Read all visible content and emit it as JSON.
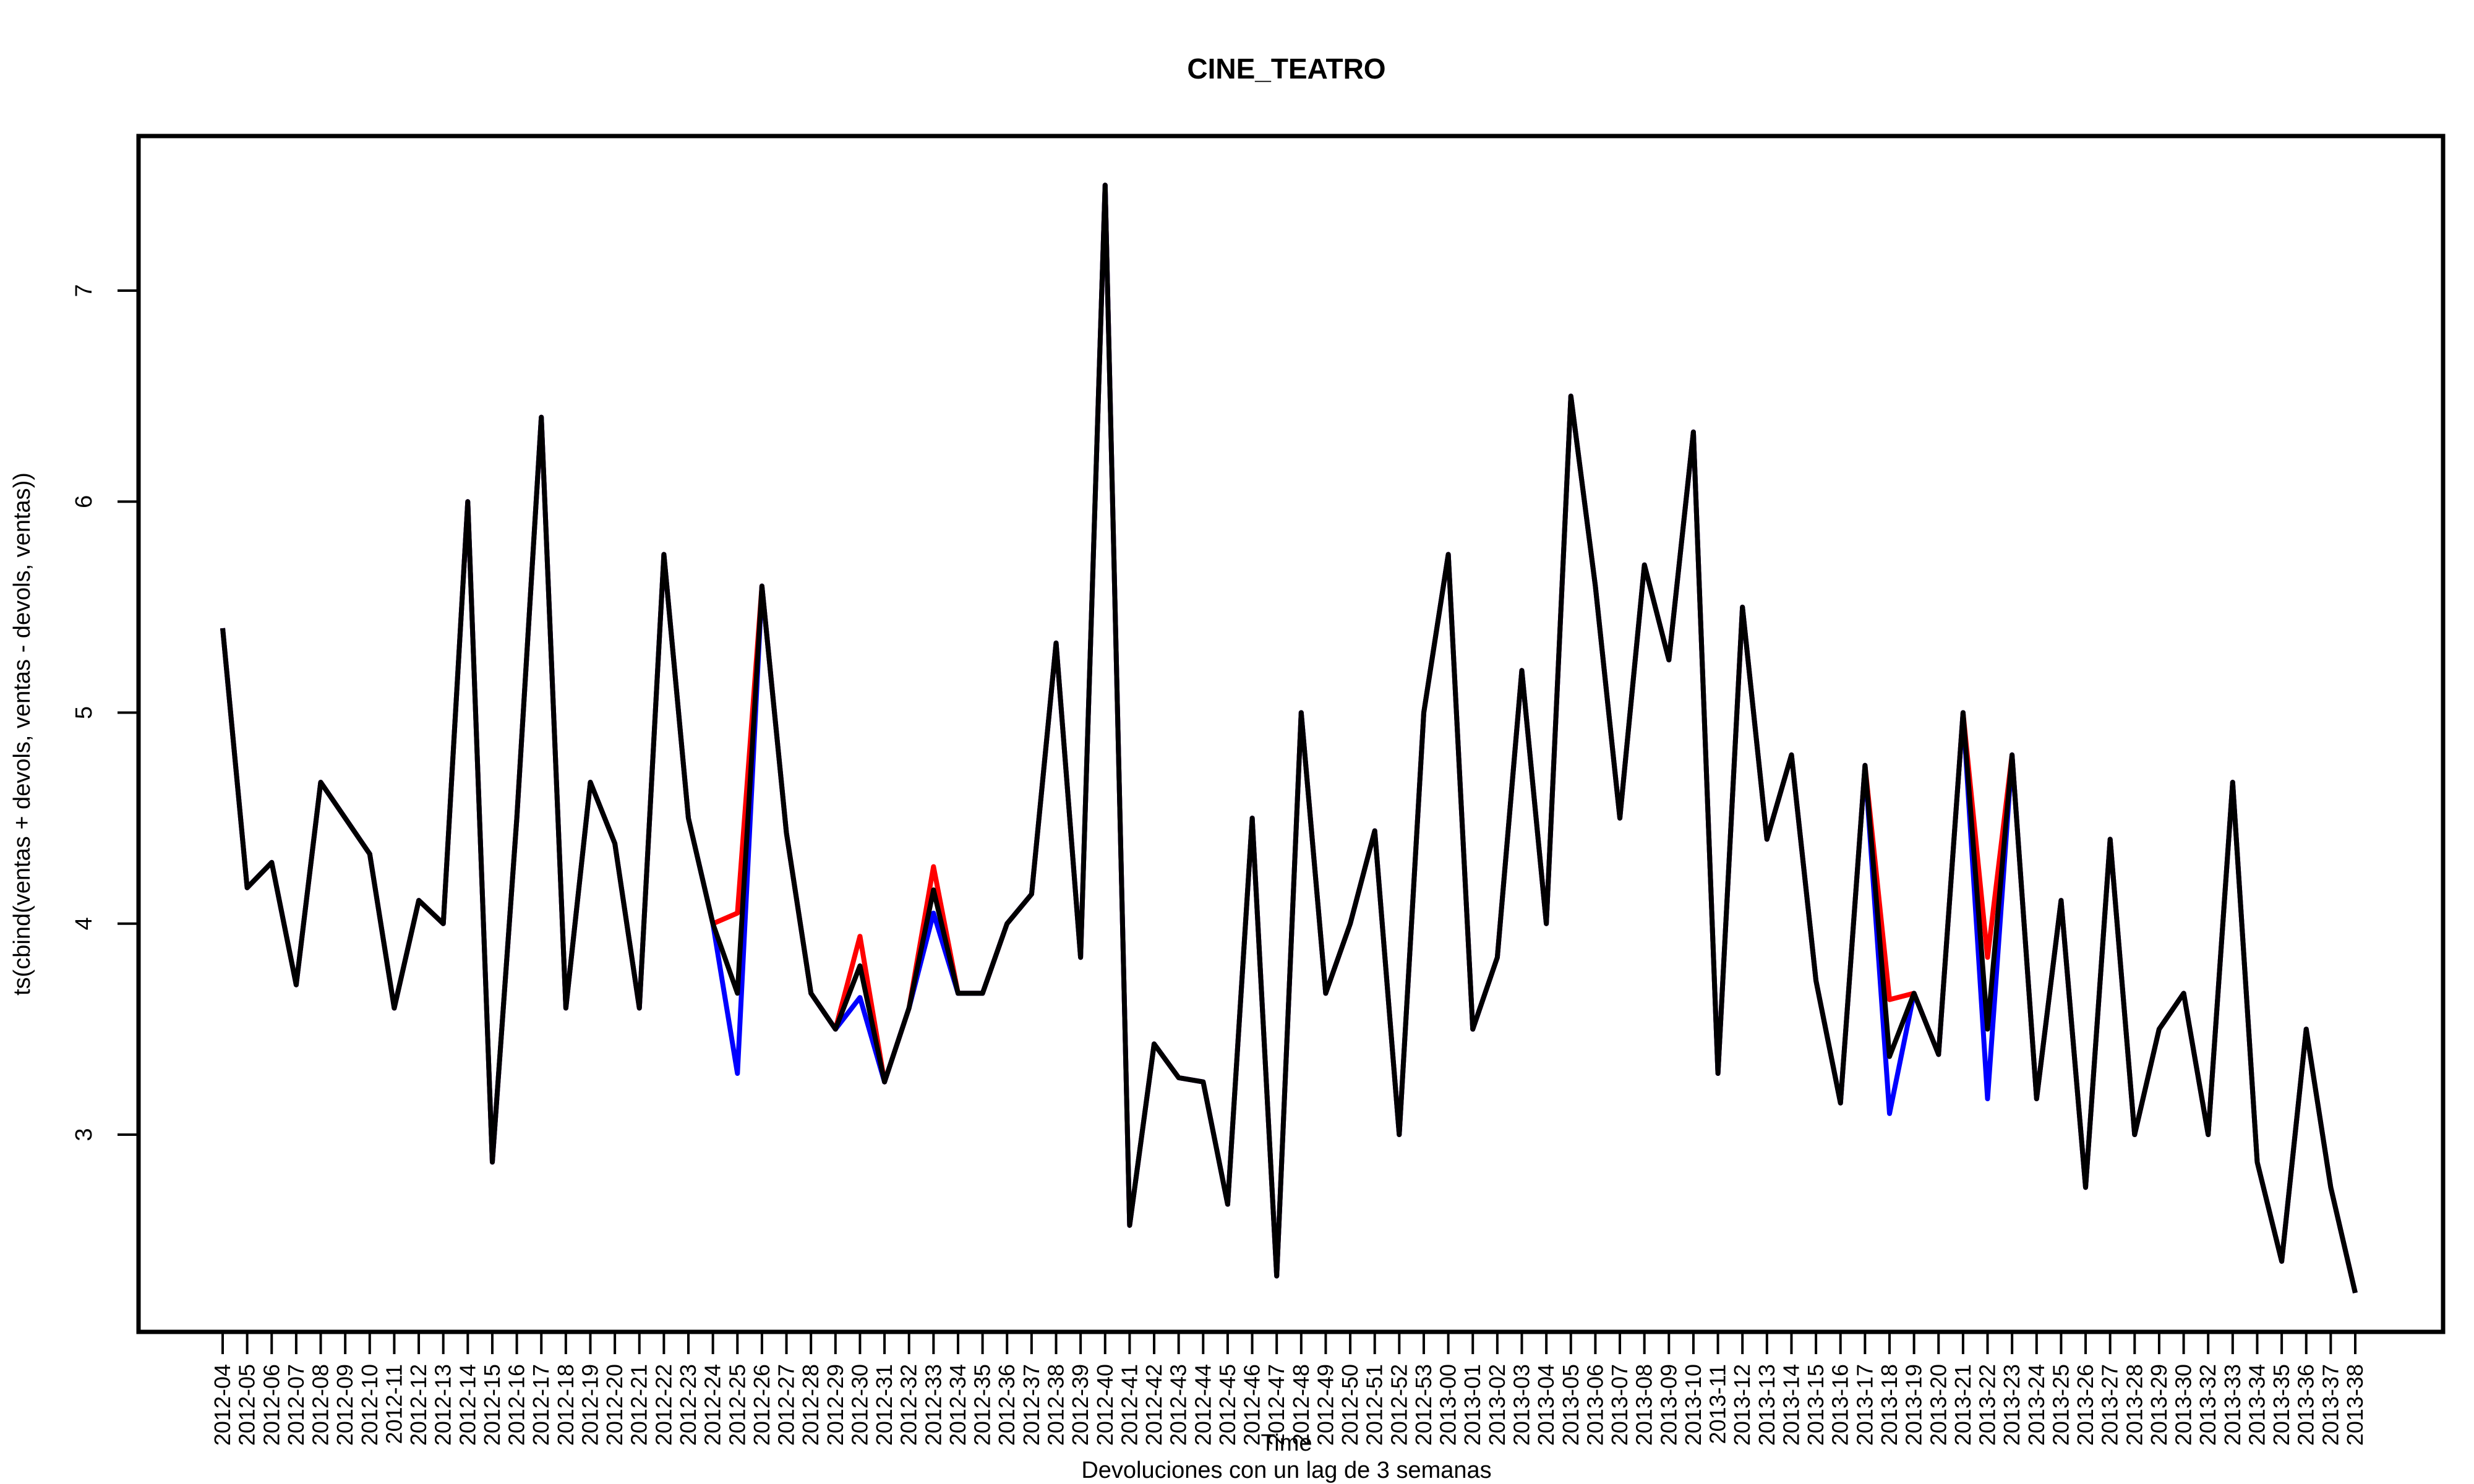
{
  "chart_data": {
    "type": "line",
    "title": "CINE_TEATRO",
    "xlabel": "Time",
    "ylabel": "ts(cbind(ventas + devols, ventas - devols, ventas))",
    "caption": "Devoluciones con un lag de 3 semanas",
    "ylim": [
      2.2,
      7.7
    ],
    "yticks": [
      3,
      4,
      5,
      6,
      7
    ],
    "grid": false,
    "categories": [
      "2012-04",
      "2012-05",
      "2012-06",
      "2012-07",
      "2012-08",
      "2012-09",
      "2012-10",
      "2012-11",
      "2012-12",
      "2012-13",
      "2012-14",
      "2012-15",
      "2012-16",
      "2012-17",
      "2012-18",
      "2012-19",
      "2012-20",
      "2012-21",
      "2012-22",
      "2012-23",
      "2012-24",
      "2012-25",
      "2012-26",
      "2012-27",
      "2012-28",
      "2012-29",
      "2012-30",
      "2012-31",
      "2012-32",
      "2012-33",
      "2012-34",
      "2012-35",
      "2012-36",
      "2012-37",
      "2012-38",
      "2012-39",
      "2012-40",
      "2012-41",
      "2012-42",
      "2012-43",
      "2012-44",
      "2012-45",
      "2012-46",
      "2012-47",
      "2012-48",
      "2012-49",
      "2012-50",
      "2012-51",
      "2012-52",
      "2012-53",
      "2013-00",
      "2013-01",
      "2013-02",
      "2013-03",
      "2013-04",
      "2013-05",
      "2013-06",
      "2013-07",
      "2013-08",
      "2013-09",
      "2013-10",
      "2013-11",
      "2013-12",
      "2013-13",
      "2013-14",
      "2013-15",
      "2013-16",
      "2013-17",
      "2013-18",
      "2013-19",
      "2013-20",
      "2013-21",
      "2013-22",
      "2013-23",
      "2013-24",
      "2013-25",
      "2013-26",
      "2013-27",
      "2013-28",
      "2013-29",
      "2013-30",
      "2013-32",
      "2013-33",
      "2013-34",
      "2013-35",
      "2013-36",
      "2013-37",
      "2013-38"
    ],
    "series": [
      {
        "color": "#ff0000",
        "values": [
          5.4,
          4.17,
          4.29,
          3.71,
          4.67,
          4.5,
          4.33,
          3.6,
          4.11,
          4.0,
          6.0,
          2.87,
          4.5,
          6.4,
          3.6,
          4.67,
          4.38,
          3.6,
          5.75,
          4.5,
          4.0,
          4.05,
          5.6,
          4.43,
          3.67,
          3.5,
          3.94,
          3.25,
          3.6,
          4.27,
          3.67,
          3.67,
          4.0,
          4.14,
          5.33,
          3.84,
          7.5,
          2.57,
          3.43,
          3.27,
          3.25,
          2.67,
          4.5,
          2.33,
          5.0,
          3.67,
          4.0,
          4.44,
          3.0,
          5.0,
          5.75,
          3.5,
          3.84,
          5.2,
          4.0,
          6.5,
          5.6,
          4.5,
          5.7,
          5.25,
          6.33,
          3.29,
          5.5,
          4.4,
          4.8,
          3.73,
          3.15,
          4.75,
          3.64,
          3.67,
          3.38,
          5.0,
          3.84,
          4.8,
          3.17,
          4.11,
          2.75,
          4.4,
          3.0,
          3.5,
          3.67,
          3.0,
          4.67,
          2.87,
          2.4,
          3.5,
          2.75,
          2.25
        ]
      },
      {
        "color": "#0000ff",
        "values": [
          5.4,
          4.17,
          4.29,
          3.71,
          4.67,
          4.5,
          4.33,
          3.6,
          4.11,
          4.0,
          6.0,
          2.87,
          4.5,
          6.4,
          3.6,
          4.67,
          4.38,
          3.6,
          5.75,
          4.5,
          4.0,
          3.29,
          5.6,
          4.43,
          3.67,
          3.5,
          3.65,
          3.25,
          3.6,
          4.05,
          3.67,
          3.67,
          4.0,
          4.14,
          5.33,
          3.84,
          7.5,
          2.57,
          3.43,
          3.27,
          3.25,
          2.67,
          4.5,
          2.33,
          5.0,
          3.67,
          4.0,
          4.44,
          3.0,
          5.0,
          5.75,
          3.5,
          3.84,
          5.2,
          4.0,
          6.5,
          5.6,
          4.5,
          5.7,
          5.25,
          6.33,
          3.29,
          5.5,
          4.4,
          4.8,
          3.73,
          3.15,
          4.75,
          3.1,
          3.67,
          3.38,
          5.0,
          3.17,
          4.8,
          3.17,
          4.11,
          2.75,
          4.4,
          3.0,
          3.5,
          3.67,
          3.0,
          4.67,
          2.87,
          2.4,
          3.5,
          2.75,
          2.25
        ]
      },
      {
        "color": "#000000",
        "values": [
          5.4,
          4.17,
          4.29,
          3.71,
          4.67,
          4.5,
          4.33,
          3.6,
          4.11,
          4.0,
          6.0,
          2.87,
          4.5,
          6.4,
          3.6,
          4.67,
          4.38,
          3.6,
          5.75,
          4.5,
          4.0,
          3.67,
          5.6,
          4.43,
          3.67,
          3.5,
          3.8,
          3.25,
          3.6,
          4.16,
          3.67,
          3.67,
          4.0,
          4.14,
          5.33,
          3.84,
          7.5,
          2.57,
          3.43,
          3.27,
          3.25,
          2.67,
          4.5,
          2.33,
          5.0,
          3.67,
          4.0,
          4.44,
          3.0,
          5.0,
          5.75,
          3.5,
          3.84,
          5.2,
          4.0,
          6.5,
          5.6,
          4.5,
          5.7,
          5.25,
          6.33,
          3.29,
          5.5,
          4.4,
          4.8,
          3.73,
          3.15,
          4.75,
          3.37,
          3.67,
          3.38,
          5.0,
          3.5,
          4.8,
          3.17,
          4.11,
          2.75,
          4.4,
          3.0,
          3.5,
          3.67,
          3.0,
          4.67,
          2.87,
          2.4,
          3.5,
          2.75,
          2.25
        ]
      }
    ]
  }
}
